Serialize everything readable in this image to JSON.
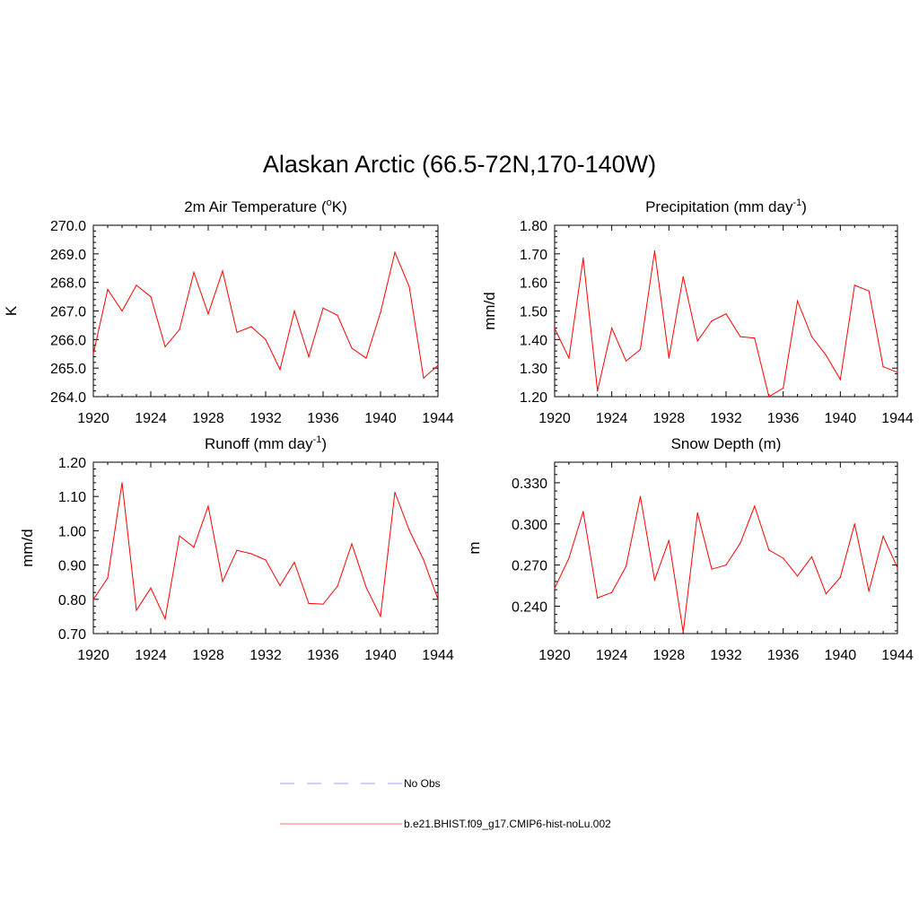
{
  "title": "Alaskan Arctic (66.5-72N,170-140W)",
  "x_ticks": [
    1920,
    1924,
    1928,
    1932,
    1936,
    1940,
    1944
  ],
  "legend": [
    {
      "label": "No Obs",
      "color": "#b4b4ff",
      "style": "dashed"
    },
    {
      "label": "b.e21.BHIST.f09_g17.CMIP6-hist-noLu.002",
      "color": "#ff9090",
      "style": "solid"
    }
  ],
  "chart_data": [
    {
      "type": "line",
      "title": "2m Air Temperature (oK)",
      "title_parts": {
        "pre": "2m Air Temperature (",
        "sup": "o",
        "post": "K)"
      },
      "ylabel": "K",
      "xlim": [
        1920,
        1944
      ],
      "ylim": [
        264.0,
        270.0
      ],
      "yticks": [
        "264.0",
        "265.0",
        "266.0",
        "267.0",
        "268.0",
        "269.0",
        "270.0"
      ],
      "line_color": "#ff0000",
      "x": [
        1920,
        1921,
        1922,
        1923,
        1924,
        1925,
        1926,
        1927,
        1928,
        1929,
        1930,
        1931,
        1932,
        1933,
        1934,
        1935,
        1936,
        1937,
        1938,
        1939,
        1940,
        1941,
        1942,
        1943,
        1944
      ],
      "values": [
        265.5,
        267.75,
        267.0,
        267.9,
        267.5,
        265.75,
        266.35,
        268.35,
        266.9,
        268.4,
        266.25,
        266.45,
        266.0,
        264.95,
        267.0,
        265.4,
        267.1,
        266.85,
        265.7,
        265.35,
        266.95,
        269.05,
        267.85,
        264.65,
        265.1
      ]
    },
    {
      "type": "line",
      "title": "Precipitation (mm day-1)",
      "title_parts": {
        "pre": "Precipitation (mm day",
        "sup": "-1",
        "post": ")"
      },
      "ylabel": "mm/d",
      "xlim": [
        1920,
        1944
      ],
      "ylim": [
        1.2,
        1.8
      ],
      "yticks": [
        "1.20",
        "1.30",
        "1.40",
        "1.50",
        "1.60",
        "1.70",
        "1.80"
      ],
      "line_color": "#ff0000",
      "x": [
        1920,
        1921,
        1922,
        1923,
        1924,
        1925,
        1926,
        1927,
        1928,
        1929,
        1930,
        1931,
        1932,
        1933,
        1934,
        1935,
        1936,
        1937,
        1938,
        1939,
        1940,
        1941,
        1942,
        1943,
        1944
      ],
      "values": [
        1.44,
        1.335,
        1.685,
        1.22,
        1.44,
        1.325,
        1.365,
        1.71,
        1.335,
        1.62,
        1.395,
        1.465,
        1.49,
        1.41,
        1.405,
        1.2,
        1.23,
        1.535,
        1.41,
        1.345,
        1.26,
        1.59,
        1.57,
        1.305,
        1.285
      ]
    },
    {
      "type": "line",
      "title": "Runoff (mm day-1)",
      "title_parts": {
        "pre": "Runoff (mm day",
        "sup": "-1",
        "post": ")"
      },
      "ylabel": "mm/d",
      "xlim": [
        1920,
        1944
      ],
      "ylim": [
        0.7,
        1.2
      ],
      "yticks": [
        "0.70",
        "0.80",
        "0.90",
        "1.00",
        "1.10",
        "1.20"
      ],
      "line_color": "#ff0000",
      "x": [
        1920,
        1921,
        1922,
        1923,
        1924,
        1925,
        1926,
        1927,
        1928,
        1929,
        1930,
        1931,
        1932,
        1933,
        1934,
        1935,
        1936,
        1937,
        1938,
        1939,
        1940,
        1941,
        1942,
        1943,
        1944
      ],
      "values": [
        0.8,
        0.862,
        1.14,
        0.768,
        0.833,
        0.743,
        0.985,
        0.952,
        1.072,
        0.852,
        0.943,
        0.933,
        0.915,
        0.84,
        0.908,
        0.788,
        0.786,
        0.838,
        0.962,
        0.835,
        0.75,
        1.112,
        1.002,
        0.915,
        0.8
      ]
    },
    {
      "type": "line",
      "title": "Snow Depth (m)",
      "title_parts": {
        "pre": "Snow Depth (m)",
        "sup": "",
        "post": ""
      },
      "ylabel": "m",
      "xlim": [
        1920,
        1944
      ],
      "ylim": [
        0.22,
        0.345
      ],
      "yticks": [
        "0.240",
        "0.270",
        "0.300",
        "0.330"
      ],
      "ytick_values": [
        0.24,
        0.27,
        0.3,
        0.33
      ],
      "line_color": "#ff0000",
      "x": [
        1920,
        1921,
        1922,
        1923,
        1924,
        1925,
        1926,
        1927,
        1928,
        1929,
        1930,
        1931,
        1932,
        1933,
        1934,
        1935,
        1936,
        1937,
        1938,
        1939,
        1940,
        1941,
        1942,
        1943,
        1944
      ],
      "values": [
        0.253,
        0.275,
        0.309,
        0.246,
        0.25,
        0.269,
        0.32,
        0.259,
        0.288,
        0.221,
        0.308,
        0.267,
        0.27,
        0.286,
        0.313,
        0.281,
        0.275,
        0.262,
        0.276,
        0.249,
        0.261,
        0.3,
        0.251,
        0.291,
        0.268
      ]
    }
  ]
}
